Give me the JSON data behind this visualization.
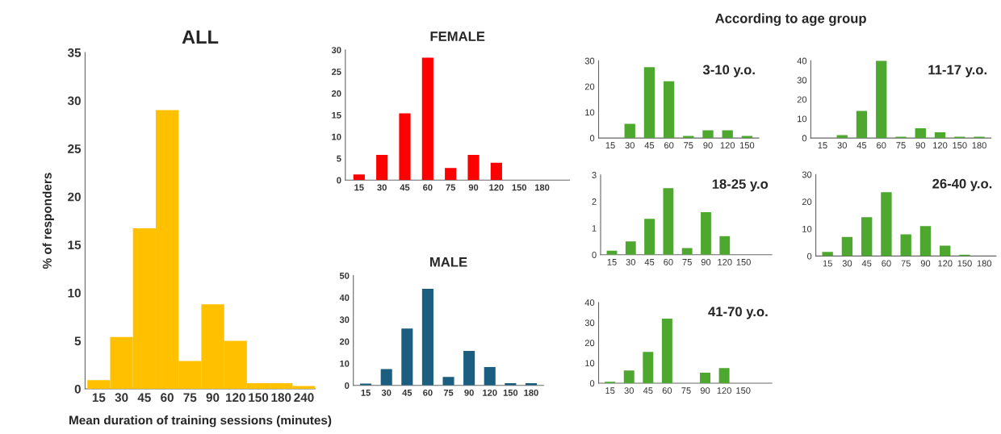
{
  "chart_data": [
    {
      "type": "bar",
      "title": "ALL",
      "xlabel": "Mean duration of training sessions (minutes)",
      "ylabel": "% of responders",
      "categories": [
        "15",
        "30",
        "45",
        "60",
        "75",
        "90",
        "120",
        "150",
        "180",
        "240"
      ],
      "values": [
        0.9,
        5.4,
        16.7,
        29,
        2.9,
        8.8,
        5.0,
        0.6,
        0.6,
        0.3
      ],
      "color": "#ffc000",
      "ylim": [
        0,
        35
      ],
      "yticks": [
        0,
        5,
        10,
        15,
        20,
        25,
        30,
        35
      ]
    },
    {
      "type": "bar",
      "title": "FEMALE",
      "categories": [
        "15",
        "30",
        "45",
        "60",
        "75",
        "90",
        "120",
        "150",
        "180"
      ],
      "values": [
        1.3,
        5.8,
        15.4,
        28.2,
        2.8,
        5.8,
        4.0,
        0,
        0
      ],
      "color": "#ff0000",
      "ylim": [
        0,
        30
      ],
      "yticks": [
        0,
        5,
        10,
        15,
        20,
        25,
        30
      ]
    },
    {
      "type": "bar",
      "title": "MALE",
      "categories": [
        "15",
        "30",
        "45",
        "60",
        "75",
        "90",
        "120",
        "150",
        "180"
      ],
      "values": [
        0.8,
        7.4,
        25.9,
        44,
        3.9,
        15.7,
        8.4,
        1,
        1
      ],
      "color": "#1b5e80",
      "ylim": [
        0,
        50
      ],
      "yticks": [
        0,
        10,
        20,
        30,
        40,
        50
      ]
    },
    {
      "type": "bar",
      "title": "3-10 y.o.",
      "annotations": [
        "According to age group"
      ],
      "categories": [
        "15",
        "30",
        "45",
        "60",
        "75",
        "90",
        "120",
        "150"
      ],
      "values": [
        0,
        5.5,
        27.5,
        22,
        0.8,
        3,
        3,
        0.8
      ],
      "color": "#4ea72e",
      "ylim": [
        0,
        30
      ],
      "yticks": [
        0,
        10,
        20,
        30
      ]
    },
    {
      "type": "bar",
      "title": "11-17 y.o.",
      "categories": [
        "15",
        "30",
        "45",
        "60",
        "75",
        "90",
        "120",
        "150",
        "180"
      ],
      "values": [
        0,
        1.5,
        14,
        40,
        0.7,
        5,
        3,
        0.7,
        0.7
      ],
      "color": "#4ea72e",
      "ylim": [
        0,
        40
      ],
      "yticks": [
        0,
        10,
        20,
        30,
        40
      ]
    },
    {
      "type": "bar",
      "title": "18-25 y.o",
      "categories": [
        "15",
        "30",
        "45",
        "60",
        "75",
        "90",
        "120",
        "150"
      ],
      "values": [
        0.15,
        0.5,
        1.35,
        2.5,
        0.25,
        1.6,
        0.7,
        0
      ],
      "color": "#4ea72e",
      "ylim": [
        0,
        3
      ],
      "yticks": [
        0,
        1,
        2,
        3
      ]
    },
    {
      "type": "bar",
      "title": "26-40 y.o.",
      "categories": [
        "15",
        "30",
        "45",
        "60",
        "75",
        "90",
        "120",
        "150",
        "180"
      ],
      "values": [
        1.5,
        7,
        14.3,
        23.5,
        8,
        11,
        3.8,
        0.5,
        0
      ],
      "color": "#4ea72e",
      "ylim": [
        0,
        30
      ],
      "yticks": [
        0,
        10,
        20,
        30
      ]
    },
    {
      "type": "bar",
      "title": "41-70 y.o.",
      "categories": [
        "15",
        "30",
        "45",
        "60",
        "75",
        "90",
        "120",
        "150"
      ],
      "values": [
        0.7,
        6.3,
        15.5,
        32,
        0,
        5.2,
        7.5,
        0
      ],
      "color": "#4ea72e",
      "ylim": [
        0,
        40
      ],
      "yticks": [
        0,
        10,
        20,
        30,
        40
      ]
    }
  ]
}
